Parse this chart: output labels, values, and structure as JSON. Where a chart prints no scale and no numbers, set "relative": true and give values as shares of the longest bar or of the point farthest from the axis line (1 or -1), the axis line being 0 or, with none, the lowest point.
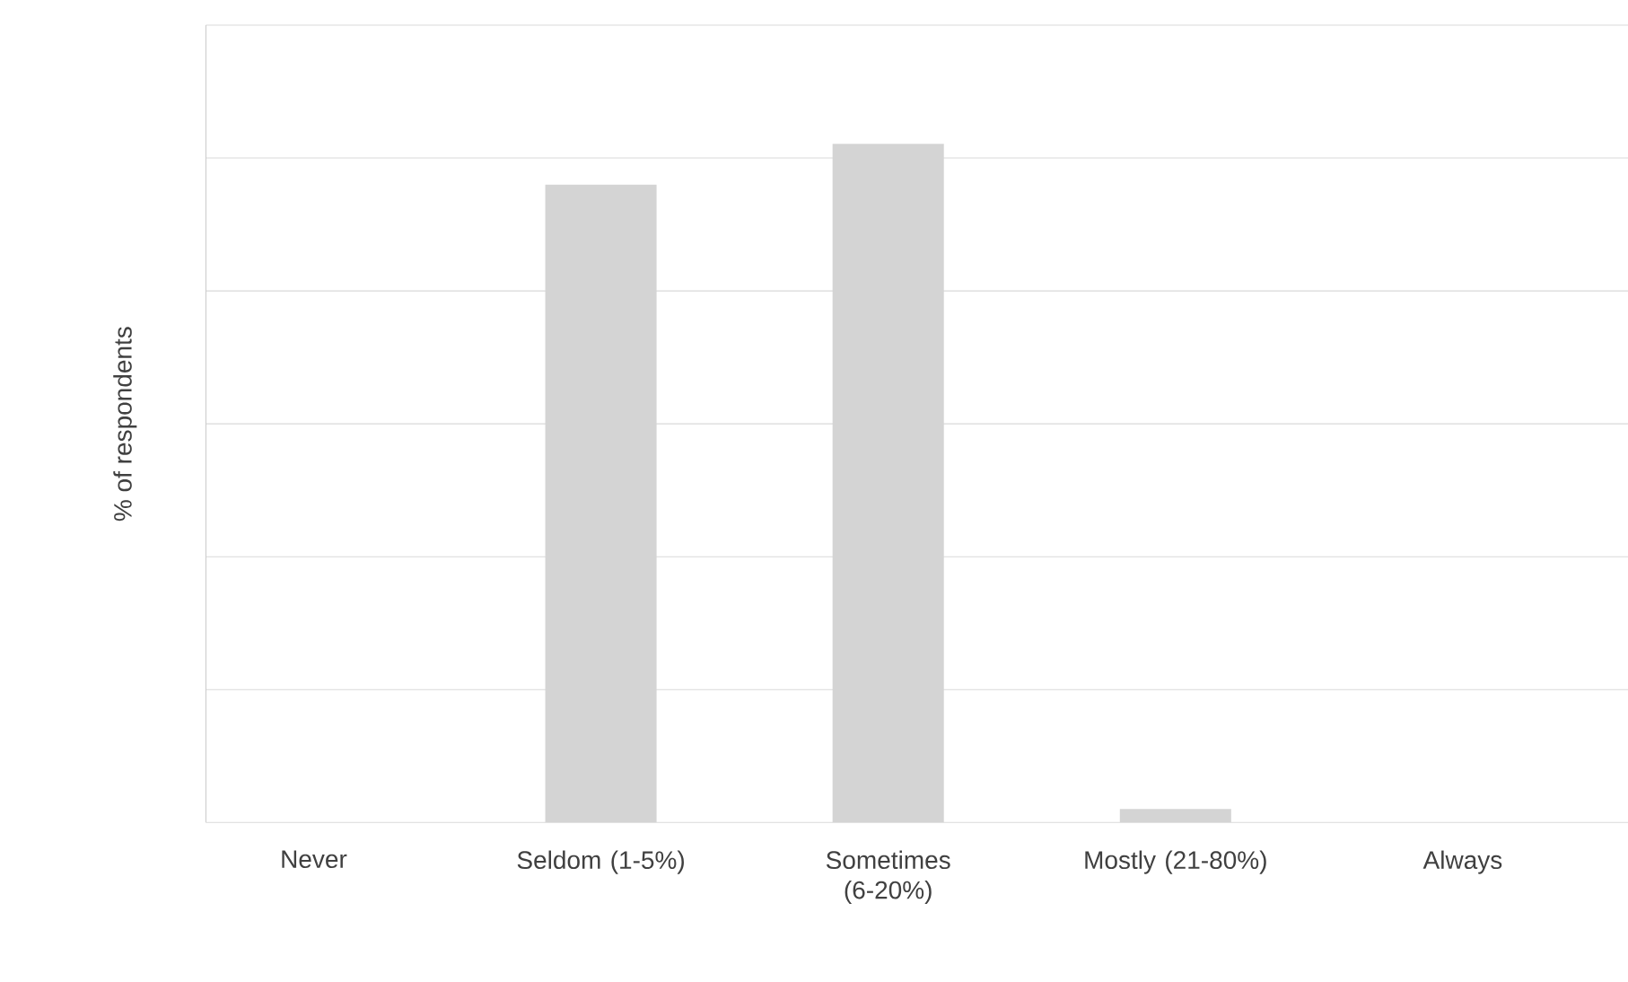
{
  "chart_data": {
    "type": "bar",
    "ylabel": "% of respondents",
    "relative": true,
    "grid": "y",
    "categories": [
      "Never",
      "Seldom (1-5%)",
      "Sometimes (6-20%)",
      "Mostly (21-80%)",
      "Always"
    ],
    "values": [
      0,
      0.94,
      1,
      0.02,
      0
    ],
    "color": "#d4d4d4"
  }
}
